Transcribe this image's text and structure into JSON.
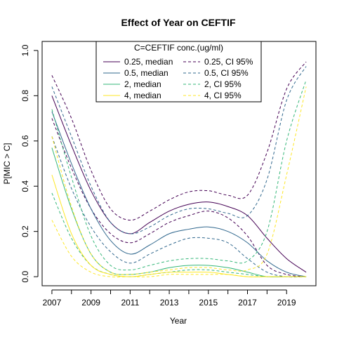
{
  "chart_data": {
    "type": "line",
    "title": "Effect of Year on CEFTIF",
    "xlabel": "Year",
    "ylabel": "P[MIC > C]",
    "xlim": [
      2006.5,
      2020.5
    ],
    "ylim": [
      -0.04,
      1.04
    ],
    "xticks": [
      2007,
      2009,
      2011,
      2013,
      2015,
      2017,
      2019
    ],
    "yticks": [
      0.0,
      0.2,
      0.4,
      0.6,
      0.8,
      1.0
    ],
    "xtick_labels": [
      "2007",
      "2009",
      "2011",
      "2013",
      "2015",
      "2017",
      "2019"
    ],
    "ytick_labels": [
      "0.0",
      "0.2",
      "0.4",
      "0.6",
      "0.8",
      "1.0"
    ],
    "grid": false,
    "legend": {
      "title": "C=CEFTIF conc.(ug/ml)",
      "placement": "top-center",
      "entries": [
        {
          "label": "0.25, median",
          "color": "#440154",
          "dash": false
        },
        {
          "label": "0.5, median",
          "color": "#31688e",
          "dash": false
        },
        {
          "label": "2, median",
          "color": "#35b779",
          "dash": false
        },
        {
          "label": "4, median",
          "color": "#fde725",
          "dash": false
        },
        {
          "label": "0.25, CI 95%",
          "color": "#440154",
          "dash": true
        },
        {
          "label": "0.5, CI 95%",
          "color": "#31688e",
          "dash": true
        },
        {
          "label": "2, CI 95%",
          "color": "#35b779",
          "dash": true
        },
        {
          "label": "4, CI 95%",
          "color": "#fde725",
          "dash": true
        }
      ]
    },
    "x": [
      2007,
      2008,
      2009,
      2010,
      2011,
      2012,
      2013,
      2014,
      2015,
      2016,
      2017,
      2018,
      2019,
      2020
    ],
    "series": [
      {
        "name": "0.25, median",
        "color": "#440154",
        "dash": false,
        "values": [
          0.8,
          0.58,
          0.38,
          0.24,
          0.19,
          0.24,
          0.29,
          0.32,
          0.33,
          0.31,
          0.27,
          0.17,
          0.08,
          0.02
        ]
      },
      {
        "name": "0.25, CI 95%",
        "color": "#440154",
        "dash": true,
        "values": [
          0.89,
          0.7,
          0.47,
          0.3,
          0.25,
          0.29,
          0.34,
          0.375,
          0.38,
          0.36,
          0.36,
          0.55,
          0.83,
          0.95
        ]
      },
      {
        "name": "0.25, CI 95%",
        "color": "#440154",
        "dash": true,
        "values": [
          0.7,
          0.48,
          0.3,
          0.19,
          0.15,
          0.19,
          0.24,
          0.27,
          0.29,
          0.26,
          0.18,
          0.05,
          0.01,
          0.0
        ]
      },
      {
        "name": "0.5, median",
        "color": "#31688e",
        "dash": false,
        "values": [
          0.73,
          0.5,
          0.3,
          0.16,
          0.1,
          0.14,
          0.19,
          0.21,
          0.22,
          0.2,
          0.15,
          0.07,
          0.02,
          0.0
        ]
      },
      {
        "name": "0.5, CI 95%",
        "color": "#31688e",
        "dash": true,
        "values": [
          0.84,
          0.62,
          0.4,
          0.24,
          0.19,
          0.22,
          0.27,
          0.3,
          0.3,
          0.28,
          0.27,
          0.43,
          0.78,
          0.93
        ]
      },
      {
        "name": "0.5, CI 95%",
        "color": "#31688e",
        "dash": true,
        "values": [
          0.62,
          0.39,
          0.22,
          0.11,
          0.06,
          0.1,
          0.14,
          0.17,
          0.17,
          0.15,
          0.08,
          0.02,
          0.0,
          0.0
        ]
      },
      {
        "name": "2, median",
        "color": "#35b779",
        "dash": false,
        "values": [
          0.57,
          0.3,
          0.1,
          0.02,
          0.01,
          0.02,
          0.04,
          0.05,
          0.05,
          0.04,
          0.02,
          0.0,
          0.0,
          0.0
        ]
      },
      {
        "name": "2, CI 95%",
        "color": "#35b779",
        "dash": true,
        "values": [
          0.74,
          0.44,
          0.18,
          0.05,
          0.03,
          0.05,
          0.07,
          0.08,
          0.08,
          0.07,
          0.07,
          0.2,
          0.6,
          0.87
        ]
      },
      {
        "name": "2, CI 95%",
        "color": "#35b779",
        "dash": true,
        "values": [
          0.37,
          0.17,
          0.05,
          0.01,
          0.0,
          0.01,
          0.02,
          0.03,
          0.03,
          0.02,
          0.01,
          0.0,
          0.0,
          0.0
        ]
      },
      {
        "name": "4, median",
        "color": "#fde725",
        "dash": false,
        "values": [
          0.45,
          0.19,
          0.05,
          0.01,
          0.0,
          0.01,
          0.02,
          0.02,
          0.02,
          0.01,
          0.0,
          0.0,
          0.0,
          0.0
        ]
      },
      {
        "name": "4, CI 95%",
        "color": "#fde725",
        "dash": true,
        "values": [
          0.62,
          0.31,
          0.1,
          0.02,
          0.01,
          0.02,
          0.03,
          0.04,
          0.04,
          0.03,
          0.03,
          0.1,
          0.45,
          0.84
        ]
      },
      {
        "name": "4, CI 95%",
        "color": "#fde725",
        "dash": true,
        "values": [
          0.25,
          0.09,
          0.02,
          0.0,
          0.0,
          0.0,
          0.01,
          0.01,
          0.01,
          0.01,
          0.0,
          0.0,
          0.0,
          0.0
        ]
      }
    ]
  }
}
